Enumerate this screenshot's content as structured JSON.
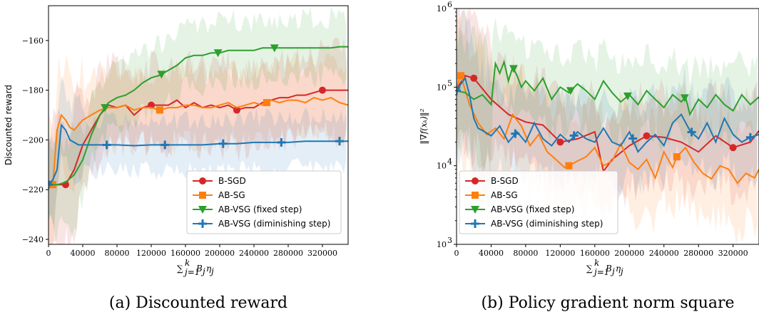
{
  "colors": {
    "B-SGD": "#d62728",
    "AB-SG": "#ff7f0e",
    "AB-VSG (fixed step)": "#2ca02c",
    "AB-VSG (diminishing step)": "#1f77b4"
  },
  "legend_position": "lower right",
  "chart_data": [
    {
      "type": "line",
      "caption": "(a) Discounted reward",
      "xlabel": "∑_{j=1}^{k} B_j η_j",
      "ylabel": "Discounted reward",
      "xlim": [
        0,
        350000
      ],
      "ylim": [
        -242,
        -146
      ],
      "xticks": [
        0,
        40000,
        80000,
        120000,
        160000,
        200000,
        240000,
        280000,
        320000
      ],
      "yticks": [
        -240,
        -220,
        -200,
        -180,
        -160
      ],
      "legend": [
        "B-SGD",
        "AB-SG",
        "AB-VSG (fixed step)",
        "AB-VSG (diminishing step)"
      ],
      "series": [
        {
          "name": "B-SGD",
          "marker": "circle",
          "x": [
            0,
            10000,
            20000,
            30000,
            40000,
            50000,
            60000,
            70000,
            80000,
            90000,
            100000,
            110000,
            120000,
            130000,
            140000,
            150000,
            160000,
            170000,
            180000,
            190000,
            200000,
            210000,
            220000,
            230000,
            240000,
            250000,
            260000,
            270000,
            280000,
            290000,
            300000,
            310000,
            320000,
            330000,
            340000,
            350000
          ],
          "y": [
            -218,
            -218,
            -218,
            -212,
            -202,
            -196,
            -190,
            -186,
            -187,
            -186,
            -190,
            -187,
            -186,
            -186,
            -186,
            -184,
            -187,
            -185,
            -187,
            -186,
            -187,
            -186,
            -188,
            -187,
            -187,
            -185,
            -184,
            -183,
            -183,
            -182,
            -182,
            -181,
            -180,
            -180,
            -180,
            -180
          ],
          "marker_x": [
            0,
            20000,
            120000,
            220000,
            320000
          ]
        },
        {
          "name": "AB-SG",
          "marker": "square",
          "x": [
            0,
            5000,
            10000,
            15000,
            20000,
            25000,
            30000,
            40000,
            50000,
            60000,
            70000,
            80000,
            90000,
            100000,
            110000,
            120000,
            130000,
            140000,
            150000,
            160000,
            170000,
            180000,
            190000,
            200000,
            210000,
            220000,
            230000,
            240000,
            250000,
            260000,
            270000,
            280000,
            290000,
            300000,
            310000,
            320000,
            330000,
            340000,
            350000
          ],
          "y": [
            -218,
            -218,
            -196,
            -190,
            -192,
            -195,
            -196,
            -192,
            -190,
            -188,
            -187,
            -187,
            -186,
            -188,
            -187,
            -187,
            -188,
            -187,
            -187,
            -186,
            -186,
            -187,
            -187,
            -186,
            -185,
            -187,
            -186,
            -185,
            -186,
            -184,
            -185,
            -184,
            -184,
            -185,
            -183,
            -184,
            -183,
            -185,
            -186
          ],
          "marker_x": [
            5000,
            130000,
            255000
          ]
        },
        {
          "name": "AB-VSG (fixed step)",
          "marker": "triangle-down",
          "x": [
            0,
            10000,
            20000,
            30000,
            40000,
            50000,
            60000,
            70000,
            80000,
            90000,
            100000,
            110000,
            120000,
            130000,
            140000,
            150000,
            160000,
            170000,
            180000,
            190000,
            200000,
            210000,
            220000,
            230000,
            240000,
            250000,
            260000,
            270000,
            280000,
            290000,
            300000,
            310000,
            320000,
            330000,
            340000,
            350000
          ],
          "y": [
            -218,
            -218,
            -217,
            -214,
            -208,
            -198,
            -190,
            -185,
            -183,
            -182,
            -180,
            -177,
            -175,
            -174,
            -172,
            -170,
            -167,
            -166,
            -166,
            -165,
            -165,
            -164,
            -164,
            -164,
            -164,
            -163,
            -163,
            -163,
            -163,
            -163,
            -163,
            -163,
            -163,
            -163,
            -162.5,
            -162.5
          ],
          "marker_x": [
            0,
            66000,
            132000,
            198000,
            264000
          ]
        },
        {
          "name": "AB-VSG (diminishing step)",
          "marker": "plus",
          "x": [
            0,
            5000,
            10000,
            15000,
            20000,
            25000,
            30000,
            35000,
            40000,
            60000,
            80000,
            100000,
            120000,
            140000,
            160000,
            180000,
            200000,
            220000,
            240000,
            260000,
            280000,
            300000,
            320000,
            340000,
            350000
          ],
          "y": [
            -218,
            -216,
            -212,
            -194,
            -196,
            -200,
            -201,
            -202,
            -202,
            -202,
            -202,
            -202.3,
            -202,
            -202,
            -202,
            -202,
            -201.5,
            -201.5,
            -201,
            -201,
            -201,
            -200.5,
            -200.5,
            -200.5,
            -200.5
          ],
          "marker_x": [
            0,
            68000,
            136000,
            204000,
            272000,
            340000
          ]
        }
      ]
    },
    {
      "type": "line",
      "caption": "(b) Policy gradient norm square",
      "xlabel": "∑_{j=1}^{k} B_j η_j",
      "ylabel": "‖∇f(x_k)‖²",
      "xlim": [
        0,
        350000
      ],
      "ylim": [
        1000,
        1000000
      ],
      "log_y": true,
      "xticks": [
        0,
        40000,
        80000,
        120000,
        160000,
        200000,
        240000,
        280000,
        320000
      ],
      "yticks": [
        "10^3",
        "10^4",
        "10^5",
        "10^6"
      ],
      "legend": [
        "B-SGD",
        "AB-SG",
        "AB-VSG (fixed step)",
        "AB-VSG (diminishing step)"
      ],
      "series": [
        {
          "name": "B-SGD",
          "marker": "circle",
          "x": [
            0,
            10000,
            20000,
            40000,
            60000,
            80000,
            100000,
            120000,
            140000,
            160000,
            170000,
            180000,
            200000,
            220000,
            240000,
            260000,
            280000,
            300000,
            320000,
            340000,
            350000
          ],
          "y": [
            95000,
            140000,
            130000,
            70000,
            45000,
            36000,
            33000,
            20000,
            22000,
            27000,
            8500,
            12000,
            18000,
            24000,
            23000,
            20000,
            15000,
            24000,
            17000,
            20000,
            28000
          ],
          "marker_x": [
            20000,
            120000,
            220000,
            320000
          ]
        },
        {
          "name": "AB-SG",
          "marker": "square",
          "x": [
            0,
            5000,
            15000,
            25000,
            35000,
            45000,
            55000,
            65000,
            75000,
            85000,
            95000,
            105000,
            115000,
            125000,
            130000,
            140000,
            150000,
            160000,
            170000,
            180000,
            190000,
            200000,
            210000,
            220000,
            230000,
            240000,
            250000,
            255000,
            265000,
            275000,
            285000,
            295000,
            305000,
            315000,
            325000,
            335000,
            345000,
            350000
          ],
          "y": [
            100000,
            140000,
            60000,
            35000,
            25000,
            30000,
            22000,
            45000,
            32000,
            18000,
            25000,
            15000,
            12000,
            9500,
            10000,
            11500,
            13000,
            17000,
            10000,
            11500,
            19000,
            11000,
            9000,
            12000,
            7000,
            15000,
            9500,
            13000,
            17000,
            11000,
            8000,
            6800,
            10000,
            9000,
            6000,
            8000,
            7000,
            9000
          ],
          "marker_x": [
            5000,
            130000,
            255000
          ]
        },
        {
          "name": "AB-VSG (fixed step)",
          "marker": "triangle-down",
          "x": [
            0,
            10000,
            20000,
            30000,
            40000,
            45000,
            50000,
            55000,
            60000,
            65000,
            70000,
            75000,
            80000,
            90000,
            100000,
            110000,
            120000,
            130000,
            140000,
            150000,
            160000,
            170000,
            180000,
            190000,
            200000,
            210000,
            220000,
            230000,
            240000,
            250000,
            260000,
            265000,
            270000,
            280000,
            290000,
            300000,
            310000,
            320000,
            330000,
            340000,
            350000
          ],
          "y": [
            90000,
            85000,
            70000,
            80000,
            60000,
            200000,
            150000,
            210000,
            120000,
            180000,
            140000,
            100000,
            120000,
            90000,
            130000,
            70000,
            100000,
            85000,
            110000,
            90000,
            70000,
            120000,
            85000,
            65000,
            80000,
            60000,
            90000,
            70000,
            55000,
            80000,
            65000,
            75000,
            45000,
            70000,
            55000,
            80000,
            60000,
            50000,
            80000,
            60000,
            75000
          ],
          "marker_x": [
            0,
            66000,
            132000,
            198000,
            264000
          ]
        },
        {
          "name": "AB-VSG (diminishing step)",
          "marker": "plus",
          "x": [
            0,
            5000,
            10000,
            15000,
            20000,
            25000,
            30000,
            40000,
            50000,
            60000,
            70000,
            80000,
            90000,
            100000,
            110000,
            120000,
            130000,
            140000,
            150000,
            160000,
            170000,
            180000,
            190000,
            200000,
            210000,
            220000,
            230000,
            240000,
            250000,
            260000,
            270000,
            280000,
            290000,
            300000,
            310000,
            320000,
            330000,
            340000,
            350000
          ],
          "y": [
            90000,
            110000,
            130000,
            80000,
            40000,
            30000,
            28000,
            24000,
            32000,
            20000,
            27000,
            20000,
            35000,
            22000,
            18000,
            25000,
            20000,
            27000,
            22000,
            20000,
            30000,
            20000,
            18000,
            27000,
            15000,
            20000,
            25000,
            18000,
            35000,
            45000,
            28000,
            22000,
            35000,
            20000,
            40000,
            25000,
            20000,
            23000,
            25000
          ],
          "marker_x": [
            0,
            68000,
            136000,
            204000,
            272000,
            340000
          ]
        }
      ]
    }
  ]
}
